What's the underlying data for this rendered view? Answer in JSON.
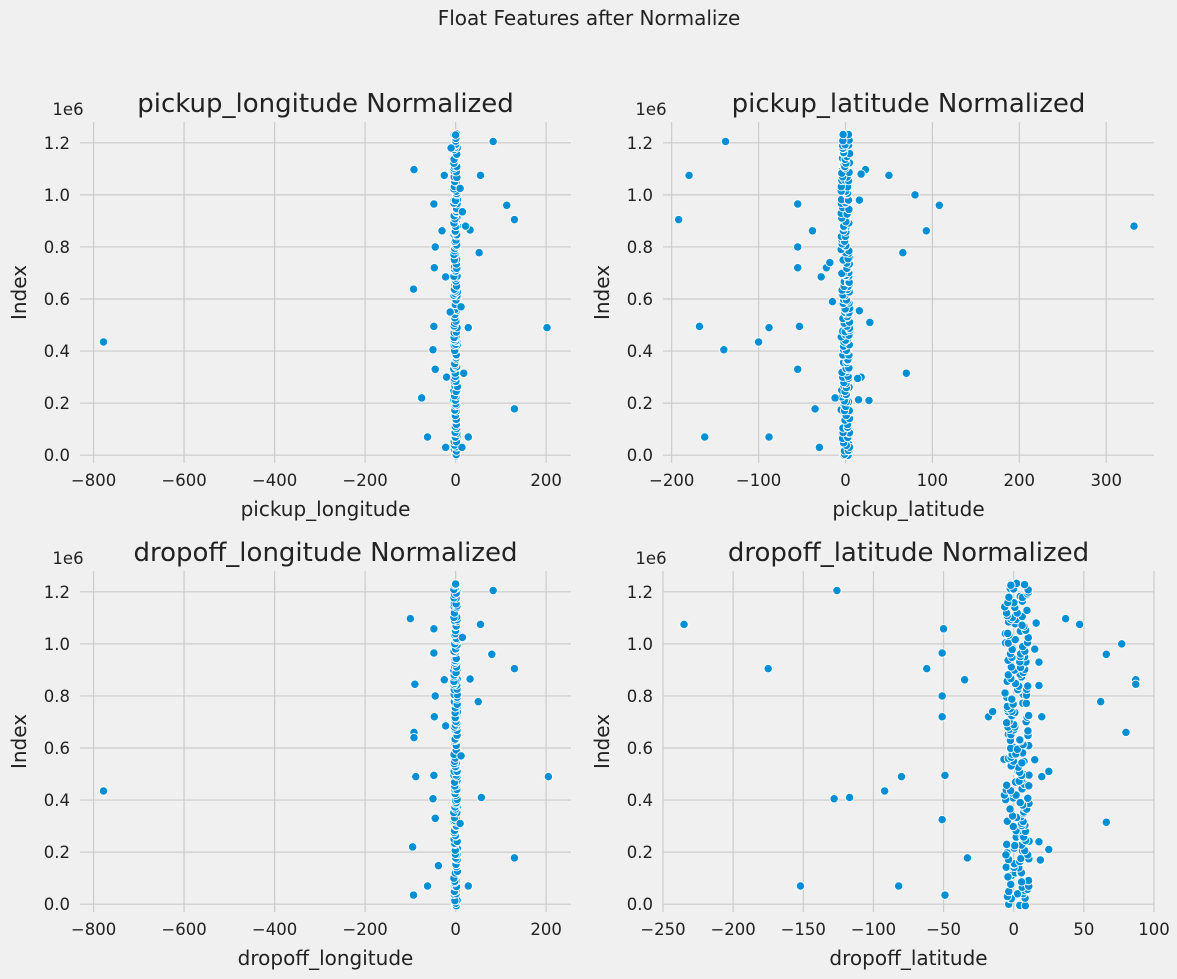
{
  "figure_title": "Float Features after Normalize",
  "colors": {
    "background": "#f0f0f0",
    "grid": "#cbcbcb",
    "point": "#008fd5",
    "point_edge": "#ffffff"
  },
  "chart_data": [
    {
      "type": "scatter",
      "title": "pickup_longitude Normalized",
      "xlabel": "pickup_longitude",
      "ylabel": "Index",
      "y_offset_label": "1e6",
      "xlim": [
        -830,
        255
      ],
      "ylim": [
        -0.03,
        1.28
      ],
      "xticks": [
        -800,
        -600,
        -400,
        -200,
        0,
        200
      ],
      "xtick_labels": [
        "−800",
        "−600",
        "−400",
        "−200",
        "0",
        "200"
      ],
      "yticks": [
        0.0,
        0.2,
        0.4,
        0.6,
        0.8,
        1.0,
        1.2
      ],
      "ytick_labels": [
        "0.0",
        "0.2",
        "0.4",
        "0.6",
        "0.8",
        "1.0",
        "1.2"
      ],
      "grid": true,
      "dense_band": {
        "x_center": 0,
        "x_halfwidth": 4,
        "y_range": [
          0.0,
          1.23
        ]
      },
      "points": [
        {
          "x": -778,
          "y": 0.435
        },
        {
          "x": 202,
          "y": 0.49
        },
        {
          "x": 83,
          "y": 1.205
        },
        {
          "x": 130,
          "y": 0.905
        },
        {
          "x": 113,
          "y": 0.96
        },
        {
          "x": 130,
          "y": 0.178
        },
        {
          "x": 55,
          "y": 1.075
        },
        {
          "x": 52,
          "y": 0.778
        },
        {
          "x": 32,
          "y": 0.865
        },
        {
          "x": 28,
          "y": 0.49
        },
        {
          "x": 28,
          "y": 0.07
        },
        {
          "x": 22,
          "y": 0.88
        },
        {
          "x": 18,
          "y": 0.315
        },
        {
          "x": -92,
          "y": 1.097
        },
        {
          "x": -93,
          "y": 0.638
        },
        {
          "x": -75,
          "y": 0.22
        },
        {
          "x": -62,
          "y": 0.07
        },
        {
          "x": -48,
          "y": 0.965
        },
        {
          "x": -45,
          "y": 0.8
        },
        {
          "x": -47,
          "y": 0.72
        },
        {
          "x": -48,
          "y": 0.495
        },
        {
          "x": -50,
          "y": 0.405
        },
        {
          "x": -45,
          "y": 0.33
        },
        {
          "x": -30,
          "y": 0.862
        },
        {
          "x": -25,
          "y": 1.075
        },
        {
          "x": -22,
          "y": 0.685
        },
        {
          "x": -20,
          "y": 0.3
        },
        {
          "x": -22,
          "y": 0.03
        },
        {
          "x": 10,
          "y": 1.025
        },
        {
          "x": 15,
          "y": 0.935
        },
        {
          "x": 12,
          "y": 0.57
        },
        {
          "x": 14,
          "y": 0.03
        },
        {
          "x": -10,
          "y": 1.18
        },
        {
          "x": -12,
          "y": 0.55
        },
        {
          "x": 0,
          "y": 1.23
        }
      ]
    },
    {
      "type": "scatter",
      "title": "pickup_latitude Normalized",
      "xlabel": "pickup_latitude",
      "ylabel": "Index",
      "y_offset_label": "1e6",
      "xlim": [
        -210,
        355
      ],
      "ylim": [
        -0.03,
        1.28
      ],
      "xticks": [
        -200,
        -100,
        0,
        100,
        200,
        300
      ],
      "xtick_labels": [
        "−200",
        "−100",
        "0",
        "100",
        "200",
        "300"
      ],
      "yticks": [
        0.0,
        0.2,
        0.4,
        0.6,
        0.8,
        1.0,
        1.2
      ],
      "ytick_labels": [
        "0.0",
        "0.2",
        "0.4",
        "0.6",
        "0.8",
        "1.0",
        "1.2"
      ],
      "grid": true,
      "dense_band": {
        "x_center": 0,
        "x_halfwidth": 5,
        "y_range": [
          0.0,
          1.23
        ]
      },
      "points": [
        {
          "x": 332,
          "y": 0.88
        },
        {
          "x": -138,
          "y": 1.205
        },
        {
          "x": -180,
          "y": 1.075
        },
        {
          "x": -192,
          "y": 0.905
        },
        {
          "x": -168,
          "y": 0.495
        },
        {
          "x": -162,
          "y": 0.07
        },
        {
          "x": -140,
          "y": 0.405
        },
        {
          "x": -100,
          "y": 0.435
        },
        {
          "x": -88,
          "y": 0.49
        },
        {
          "x": -88,
          "y": 0.07
        },
        {
          "x": -55,
          "y": 0.965
        },
        {
          "x": -55,
          "y": 0.8
        },
        {
          "x": -55,
          "y": 0.72
        },
        {
          "x": -53,
          "y": 0.495
        },
        {
          "x": -55,
          "y": 0.33
        },
        {
          "x": -38,
          "y": 0.862
        },
        {
          "x": -35,
          "y": 0.178
        },
        {
          "x": -28,
          "y": 0.685
        },
        {
          "x": -22,
          "y": 0.72
        },
        {
          "x": -18,
          "y": 0.74
        },
        {
          "x": -30,
          "y": 0.03
        },
        {
          "x": -15,
          "y": 0.59
        },
        {
          "x": -12,
          "y": 0.22
        },
        {
          "x": 108,
          "y": 0.96
        },
        {
          "x": 93,
          "y": 0.862
        },
        {
          "x": 80,
          "y": 1.0
        },
        {
          "x": 70,
          "y": 0.315
        },
        {
          "x": 66,
          "y": 0.778
        },
        {
          "x": 50,
          "y": 1.075
        },
        {
          "x": 28,
          "y": 0.51
        },
        {
          "x": 27,
          "y": 0.21
        },
        {
          "x": 23,
          "y": 1.097
        },
        {
          "x": 18,
          "y": 1.08
        },
        {
          "x": 18,
          "y": 0.3
        },
        {
          "x": 16,
          "y": 0.98
        },
        {
          "x": 16,
          "y": 0.555
        },
        {
          "x": 15,
          "y": 0.213
        },
        {
          "x": 14,
          "y": 0.295
        }
      ]
    },
    {
      "type": "scatter",
      "title": "dropoff_longitude Normalized",
      "xlabel": "dropoff_longitude",
      "ylabel": "Index",
      "y_offset_label": "1e6",
      "xlim": [
        -830,
        255
      ],
      "ylim": [
        -0.03,
        1.28
      ],
      "xticks": [
        -800,
        -600,
        -400,
        -200,
        0,
        200
      ],
      "xtick_labels": [
        "−800",
        "−600",
        "−400",
        "−200",
        "0",
        "200"
      ],
      "yticks": [
        0.0,
        0.2,
        0.4,
        0.6,
        0.8,
        1.0,
        1.2
      ],
      "ytick_labels": [
        "0.0",
        "0.2",
        "0.4",
        "0.6",
        "0.8",
        "1.0",
        "1.2"
      ],
      "grid": true,
      "dense_band": {
        "x_center": 0,
        "x_halfwidth": 4,
        "y_range": [
          0.0,
          1.23
        ]
      },
      "points": [
        {
          "x": -778,
          "y": 0.435
        },
        {
          "x": 205,
          "y": 0.49
        },
        {
          "x": 83,
          "y": 1.205
        },
        {
          "x": 130,
          "y": 0.905
        },
        {
          "x": 80,
          "y": 0.96
        },
        {
          "x": 130,
          "y": 0.178
        },
        {
          "x": 55,
          "y": 1.075
        },
        {
          "x": 50,
          "y": 0.778
        },
        {
          "x": 57,
          "y": 0.41
        },
        {
          "x": 32,
          "y": 0.865
        },
        {
          "x": 28,
          "y": 0.07
        },
        {
          "x": -100,
          "y": 1.097
        },
        {
          "x": -90,
          "y": 0.845
        },
        {
          "x": -92,
          "y": 0.66
        },
        {
          "x": -92,
          "y": 0.64
        },
        {
          "x": -88,
          "y": 0.49
        },
        {
          "x": -95,
          "y": 0.22
        },
        {
          "x": -93,
          "y": 0.035
        },
        {
          "x": -62,
          "y": 0.07
        },
        {
          "x": -48,
          "y": 1.058
        },
        {
          "x": -48,
          "y": 0.965
        },
        {
          "x": -45,
          "y": 0.8
        },
        {
          "x": -47,
          "y": 0.72
        },
        {
          "x": -48,
          "y": 0.495
        },
        {
          "x": -50,
          "y": 0.405
        },
        {
          "x": -45,
          "y": 0.33
        },
        {
          "x": -38,
          "y": 0.148
        },
        {
          "x": -25,
          "y": 0.862
        },
        {
          "x": -22,
          "y": 0.685
        },
        {
          "x": 15,
          "y": 1.025
        },
        {
          "x": 12,
          "y": 0.57
        },
        {
          "x": 10,
          "y": 0.31
        },
        {
          "x": 0,
          "y": 1.23
        }
      ]
    },
    {
      "type": "scatter",
      "title": "dropoff_latitude Normalized",
      "xlabel": "dropoff_latitude",
      "ylabel": "Index",
      "y_offset_label": "1e6",
      "xlim": [
        -250,
        100
      ],
      "ylim": [
        -0.03,
        1.28
      ],
      "xticks": [
        -250,
        -200,
        -150,
        -100,
        -50,
        0,
        50,
        100
      ],
      "xtick_labels": [
        "−250",
        "−200",
        "−150",
        "−100",
        "−50",
        "0",
        "50",
        "100"
      ],
      "yticks": [
        0.0,
        0.2,
        0.4,
        0.6,
        0.8,
        1.0,
        1.2
      ],
      "ytick_labels": [
        "0.0",
        "0.2",
        "0.4",
        "0.6",
        "0.8",
        "1.0",
        "1.2"
      ],
      "grid": true,
      "dense_band": {
        "x_center": 2,
        "x_halfwidth": 9,
        "y_range": [
          0.0,
          1.23
        ]
      },
      "points": [
        {
          "x": -235,
          "y": 1.075
        },
        {
          "x": -175,
          "y": 0.905
        },
        {
          "x": -152,
          "y": 0.07
        },
        {
          "x": -128,
          "y": 0.405
        },
        {
          "x": -126,
          "y": 1.205
        },
        {
          "x": -117,
          "y": 0.41
        },
        {
          "x": -92,
          "y": 0.435
        },
        {
          "x": -82,
          "y": 0.07
        },
        {
          "x": -80,
          "y": 0.49
        },
        {
          "x": -62,
          "y": 0.905
        },
        {
          "x": -50,
          "y": 1.058
        },
        {
          "x": -51,
          "y": 0.965
        },
        {
          "x": -51,
          "y": 0.8
        },
        {
          "x": -51,
          "y": 0.72
        },
        {
          "x": -49,
          "y": 0.495
        },
        {
          "x": -51,
          "y": 0.325
        },
        {
          "x": -49,
          "y": 0.035
        },
        {
          "x": -35,
          "y": 0.862
        },
        {
          "x": -33,
          "y": 0.178
        },
        {
          "x": -18,
          "y": 0.72
        },
        {
          "x": -15,
          "y": 0.74
        },
        {
          "x": 87,
          "y": 0.862
        },
        {
          "x": 87,
          "y": 0.845
        },
        {
          "x": 77,
          "y": 1.0
        },
        {
          "x": 80,
          "y": 0.66
        },
        {
          "x": 66,
          "y": 0.96
        },
        {
          "x": 66,
          "y": 0.315
        },
        {
          "x": 62,
          "y": 0.778
        },
        {
          "x": 47,
          "y": 1.075
        },
        {
          "x": 37,
          "y": 1.097
        },
        {
          "x": 25,
          "y": 0.51
        },
        {
          "x": 25,
          "y": 0.21
        },
        {
          "x": 20,
          "y": 0.72
        },
        {
          "x": 20,
          "y": 0.49
        },
        {
          "x": 19,
          "y": 0.17
        },
        {
          "x": 18,
          "y": 0.93
        },
        {
          "x": 18,
          "y": 0.84
        },
        {
          "x": 18,
          "y": 0.24
        },
        {
          "x": 16,
          "y": 1.08
        },
        {
          "x": 15,
          "y": 0.98
        },
        {
          "x": 15,
          "y": 0.555
        }
      ]
    }
  ]
}
